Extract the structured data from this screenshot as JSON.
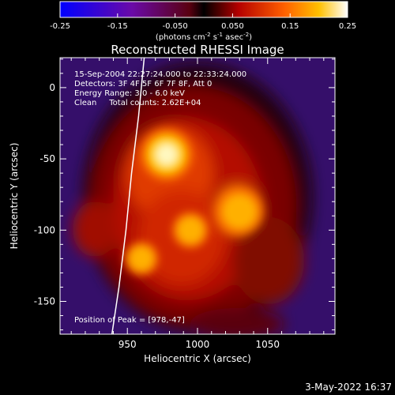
{
  "chart_data": {
    "type": "heatmap",
    "title": "Reconstructed RHESSI Image",
    "xlabel": "Heliocentric X (arcsec)",
    "ylabel": "Heliocentric Y (arcsec)",
    "xlim": [
      902,
      1098
    ],
    "ylim": [
      -173,
      21
    ],
    "x_ticks": [
      950,
      1000,
      1050
    ],
    "y_ticks": [
      0,
      -50,
      -100,
      -150
    ],
    "colorbar": {
      "ticks": [
        "-0.25",
        "-0.15",
        "-0.050",
        "0.050",
        "0.15",
        "0.25"
      ],
      "label_parts": [
        "(photons cm",
        "-2",
        " s",
        "-1",
        " asec",
        "-2",
        ")"
      ],
      "range": [
        -0.25,
        0.25
      ]
    },
    "annotations": [
      "15-Sep-2004 22:27:24.000 to 22:33:24.000",
      "Detectors: 3F 4F 5F 6F 7F 8F, Att 0",
      "Energy Range: 3.0 - 6.0 keV",
      "Clean     Total counts: 2.62E+04"
    ],
    "peak_label": "Position of Peak = [978,-47]",
    "peak_position": [
      978,
      -47
    ],
    "sources": [
      {
        "x": 978,
        "y": -47,
        "intensity": 0.25
      },
      {
        "x": 1030,
        "y": -87,
        "intensity": 0.2
      },
      {
        "x": 995,
        "y": -100,
        "intensity": 0.12
      },
      {
        "x": 960,
        "y": -120,
        "intensity": 0.1
      }
    ],
    "limb_curve": [
      [
        962,
        21
      ],
      [
        958,
        -20
      ],
      [
        953,
        -60
      ],
      [
        949,
        -100
      ],
      [
        944,
        -140
      ],
      [
        939,
        -173
      ]
    ],
    "timestamp": "3-May-2022 16:37"
  }
}
